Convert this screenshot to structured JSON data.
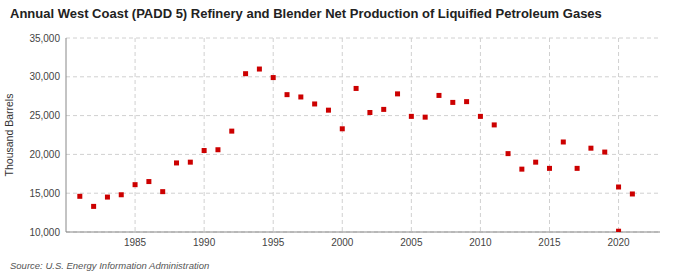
{
  "chart_data": {
    "type": "scatter",
    "title": "Annual West Coast (PADD 5) Refinery and Blender Net Production of Liquified Petroleum Gases",
    "y_label": "Thousand Barrels",
    "source": "Source: U.S. Energy Information Administration",
    "x": [
      1981,
      1982,
      1983,
      1984,
      1985,
      1986,
      1987,
      1988,
      1989,
      1990,
      1991,
      1992,
      1993,
      1994,
      1995,
      1996,
      1997,
      1998,
      1999,
      2000,
      2001,
      2002,
      2003,
      2004,
      2005,
      2006,
      2007,
      2008,
      2009,
      2010,
      2011,
      2012,
      2013,
      2014,
      2015,
      2016,
      2017,
      2018,
      2019,
      2020,
      2021,
      2020
    ],
    "values": [
      14600,
      13300,
      14500,
      14800,
      16100,
      16500,
      15200,
      18900,
      19000,
      20500,
      20600,
      23000,
      30400,
      31000,
      29900,
      27700,
      27400,
      26500,
      25700,
      23300,
      28500,
      25400,
      25800,
      27800,
      24900,
      24800,
      27600,
      26700,
      26800,
      24900,
      23800,
      20100,
      18100,
      19000,
      18200,
      21600,
      18200,
      20800,
      20300,
      15800,
      14900,
      10100
    ],
    "color": "#cc0000",
    "marker": "square",
    "xlim": [
      1980,
      2023
    ],
    "ylim": [
      10000,
      35000
    ],
    "xticks": [
      1985,
      1990,
      1995,
      2000,
      2005,
      2010,
      2015,
      2020
    ],
    "yticks": [
      {
        "value": 10000,
        "label": "10,000"
      },
      {
        "value": 15000,
        "label": "15,000"
      },
      {
        "value": 20000,
        "label": "20,000"
      },
      {
        "value": 25000,
        "label": "25,000"
      },
      {
        "value": 30000,
        "label": "30,000"
      },
      {
        "value": 35000,
        "label": "35,000"
      }
    ],
    "grid": true
  }
}
